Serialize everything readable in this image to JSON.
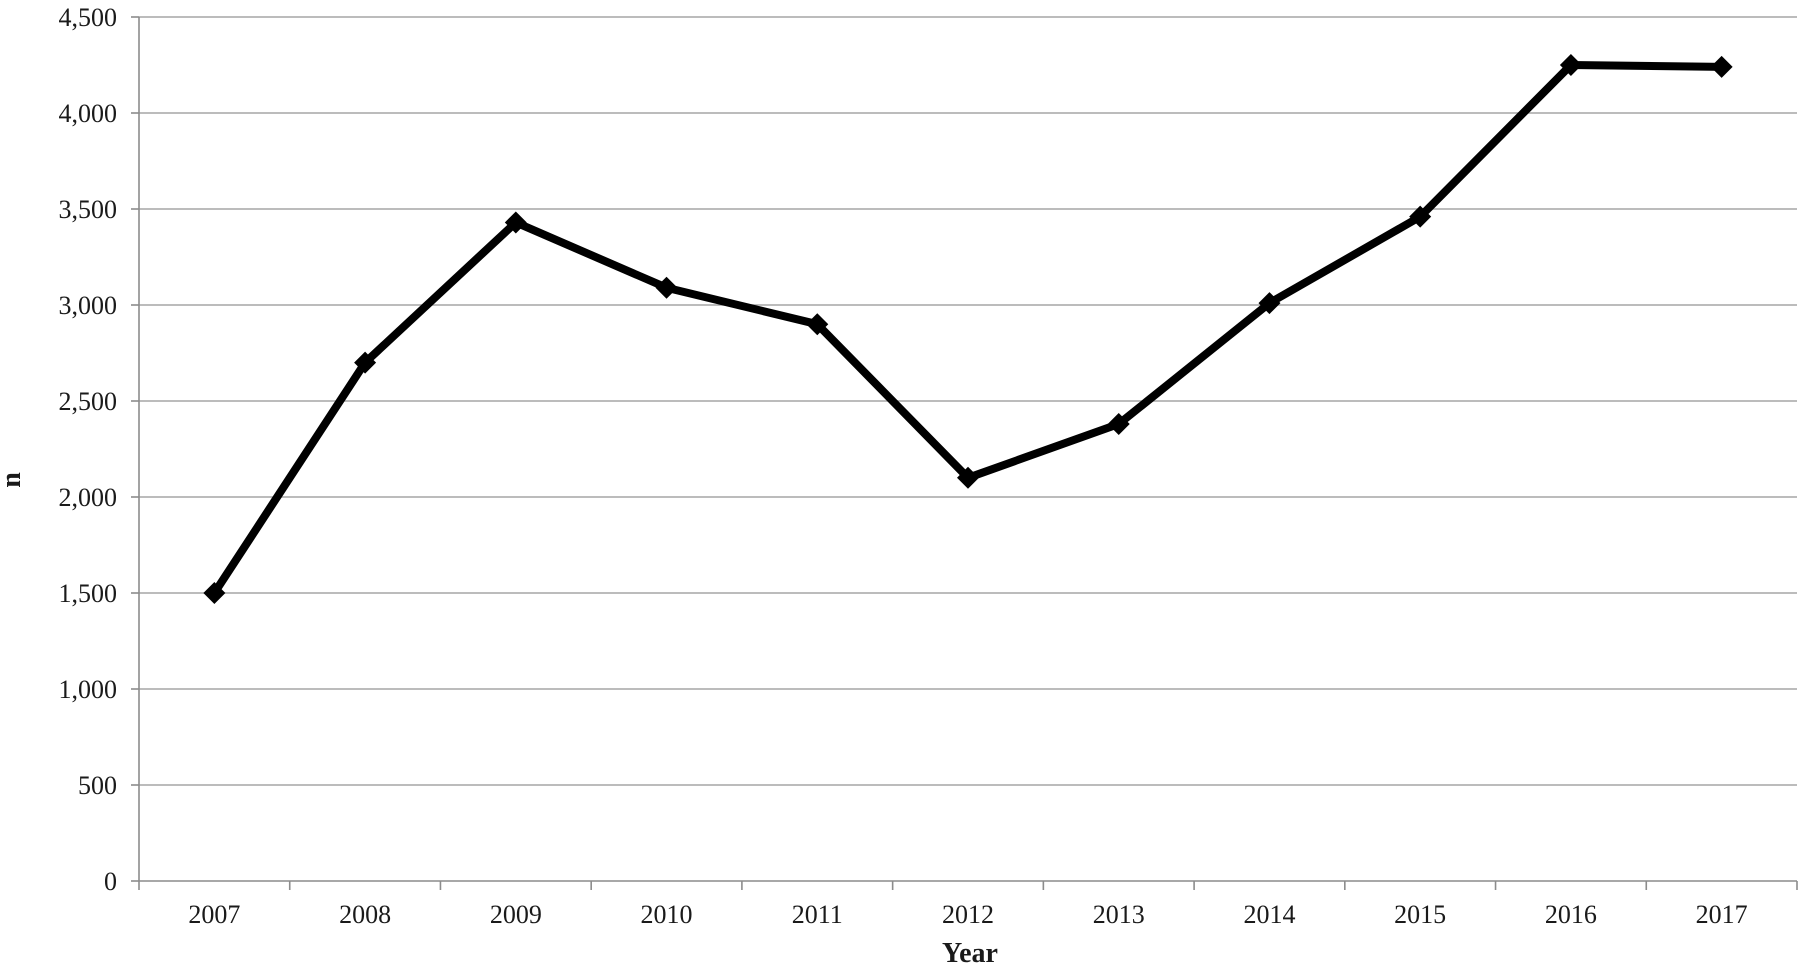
{
  "chart_data": {
    "type": "line",
    "title": "",
    "xlabel": "Year",
    "ylabel": "n",
    "x": [
      "2007",
      "2008",
      "2009",
      "2010",
      "2011",
      "2012",
      "2013",
      "2014",
      "2015",
      "2016",
      "2017"
    ],
    "series": [
      {
        "values": [
          1500,
          2700,
          3430,
          3090,
          2900,
          2100,
          2380,
          3010,
          3460,
          4250,
          4240
        ]
      }
    ],
    "ylim": [
      0,
      4500
    ],
    "yticks": [
      0,
      500,
      1000,
      1500,
      2000,
      2500,
      3000,
      3500,
      4000,
      4500
    ],
    "ytick_labels": [
      "0",
      "500",
      "1,000",
      "1,500",
      "2,000",
      "2,500",
      "3,000",
      "3,500",
      "4,000",
      "4,500"
    ],
    "grid": true,
    "marker": "diamond",
    "line_color": "#000000",
    "grid_color": "#a6a6a6"
  }
}
